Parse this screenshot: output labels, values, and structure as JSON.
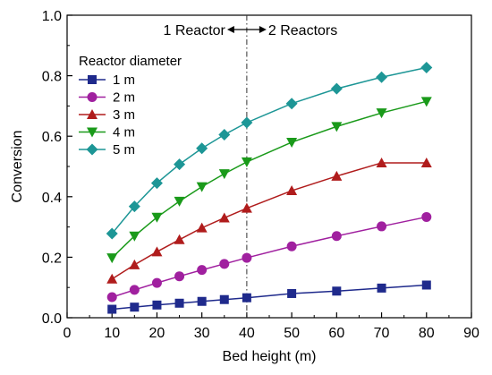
{
  "chart_data": {
    "type": "line",
    "xlabel": "Bed height (m)",
    "ylabel": "Conversion",
    "xlim": [
      0,
      90
    ],
    "ylim": [
      0.0,
      1.0
    ],
    "xticks": [
      "0",
      "10",
      "20",
      "30",
      "40",
      "50",
      "60",
      "70",
      "80",
      "90"
    ],
    "yticks": [
      "0.0",
      "0.2",
      "0.4",
      "0.6",
      "0.8",
      "1.0"
    ],
    "grid": false,
    "legend": {
      "title": "Reactor diameter",
      "placement": "upper-left"
    },
    "annotations": {
      "divider_x": 40,
      "left_text": "1 Reactor",
      "right_text": "2 Reactors"
    },
    "x": [
      10,
      15,
      20,
      25,
      30,
      35,
      40,
      50,
      60,
      70,
      80
    ],
    "series": [
      {
        "name": "1 m",
        "color": "#1f2a8c",
        "marker": "square",
        "values": [
          0.028,
          0.035,
          0.042,
          0.048,
          0.054,
          0.06,
          0.066,
          0.08,
          0.088,
          0.098,
          0.108
        ]
      },
      {
        "name": "2 m",
        "color": "#a0209f",
        "marker": "circle",
        "values": [
          0.068,
          0.092,
          0.115,
          0.137,
          0.158,
          0.178,
          0.198,
          0.236,
          0.27,
          0.302,
          0.333
        ]
      },
      {
        "name": "3 m",
        "color": "#b01c1c",
        "marker": "triangle-up",
        "values": [
          0.128,
          0.175,
          0.218,
          0.258,
          0.297,
          0.33,
          0.362,
          0.42,
          0.468,
          0.512,
          0.512
        ]
      },
      {
        "name": "4 m",
        "color": "#1a9a1a",
        "marker": "triangle-down",
        "values": [
          0.198,
          0.27,
          0.332,
          0.385,
          0.433,
          0.476,
          0.515,
          0.58,
          0.632,
          0.677,
          0.715
        ]
      },
      {
        "name": "5 m",
        "color": "#1d9696",
        "marker": "diamond",
        "values": [
          0.278,
          0.368,
          0.445,
          0.507,
          0.56,
          0.605,
          0.645,
          0.708,
          0.757,
          0.795,
          0.827
        ]
      }
    ]
  }
}
